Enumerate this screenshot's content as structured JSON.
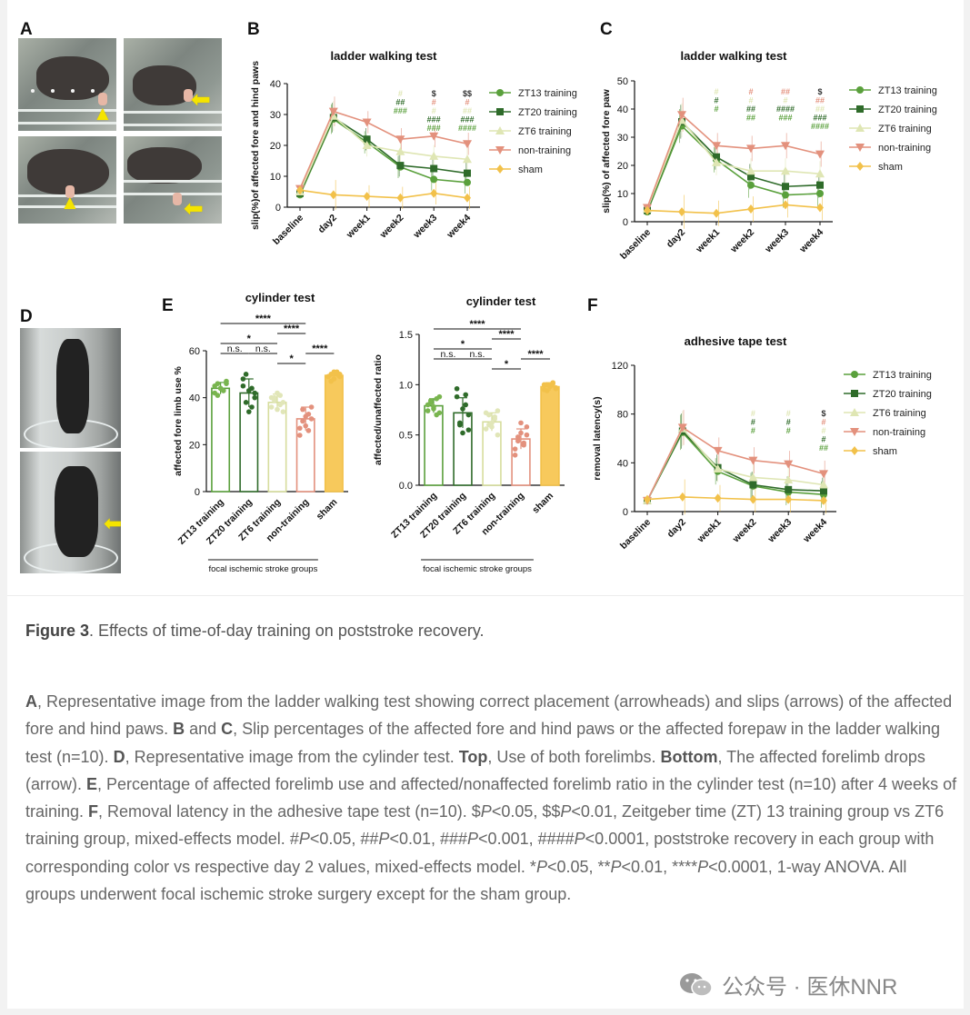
{
  "panels": {
    "A": "A",
    "B": "B",
    "C": "C",
    "D": "D",
    "E": "E",
    "F": "F"
  },
  "legend": [
    {
      "name": "ZT13 training",
      "color": "#5aa03c",
      "marker": "circle"
    },
    {
      "name": "ZT20 training",
      "color": "#2f6b2a",
      "marker": "square"
    },
    {
      "name": "ZT6 training",
      "color": "#dfe6b4",
      "marker": "triangle"
    },
    {
      "name": "non-training",
      "color": "#e3917d",
      "marker": "tri-down"
    },
    {
      "name": "sham",
      "color": "#f2c14a",
      "marker": "diamond"
    }
  ],
  "chart_data": [
    {
      "id": "B",
      "type": "line",
      "title": "ladder walking test",
      "ylabel": "slip(%)of affected fore and hind paws",
      "xlabel": "",
      "x": [
        "baseline",
        "day2",
        "week1",
        "week2",
        "week3",
        "week4"
      ],
      "ylim": [
        0,
        40
      ],
      "yticks": [
        0,
        10,
        20,
        30,
        40
      ],
      "series": [
        {
          "name": "ZT13 training",
          "values": [
            4,
            28.5,
            21,
            13,
            9,
            8
          ]
        },
        {
          "name": "ZT20 training",
          "values": [
            4.5,
            29,
            22,
            13.5,
            12.5,
            11
          ]
        },
        {
          "name": "ZT6 training",
          "values": [
            5,
            29.5,
            20,
            18,
            16.5,
            15.5
          ]
        },
        {
          "name": "non-training",
          "values": [
            6,
            31,
            27.5,
            22,
            23,
            20.5
          ]
        },
        {
          "name": "sham",
          "values": [
            5.5,
            4,
            3.5,
            3,
            4.5,
            3
          ]
        }
      ],
      "annotations": [
        {
          "x": "week2",
          "lines": [
            {
              "text": "#",
              "color": "#dfe6b4"
            },
            {
              "text": "##",
              "color": "#2f6b2a"
            },
            {
              "text": "###",
              "color": "#5aa03c"
            }
          ]
        },
        {
          "x": "week3",
          "lines": [
            {
              "text": "$",
              "color": "#333"
            },
            {
              "text": "#",
              "color": "#e3917d"
            },
            {
              "text": "#",
              "color": "#dfe6b4"
            },
            {
              "text": "###",
              "color": "#2f6b2a"
            },
            {
              "text": "###",
              "color": "#5aa03c"
            }
          ]
        },
        {
          "x": "week4",
          "lines": [
            {
              "text": "$$",
              "color": "#333"
            },
            {
              "text": "#",
              "color": "#e3917d"
            },
            {
              "text": "##",
              "color": "#dfe6b4"
            },
            {
              "text": "###",
              "color": "#2f6b2a"
            },
            {
              "text": "####",
              "color": "#5aa03c"
            }
          ]
        }
      ]
    },
    {
      "id": "C",
      "type": "line",
      "title": "ladder walking test",
      "ylabel": "slip(%) of affected fore paw",
      "xlabel": "",
      "x": [
        "baseline",
        "day2",
        "week1",
        "week2",
        "week3",
        "week4"
      ],
      "ylim": [
        0,
        50
      ],
      "yticks": [
        0,
        10,
        20,
        30,
        40,
        50
      ],
      "series": [
        {
          "name": "ZT13 training",
          "values": [
            3.5,
            34,
            22,
            13,
            9.5,
            10
          ]
        },
        {
          "name": "ZT20 training",
          "values": [
            4,
            35.5,
            23,
            16,
            12.5,
            13
          ]
        },
        {
          "name": "ZT6 training",
          "values": [
            4.5,
            36,
            21,
            18,
            18,
            17
          ]
        },
        {
          "name": "non-training",
          "values": [
            5,
            38,
            27,
            26,
            27,
            24
          ]
        },
        {
          "name": "sham",
          "values": [
            4,
            3.5,
            3,
            4.5,
            6,
            5
          ]
        }
      ],
      "annotations": [
        {
          "x": "week1",
          "lines": [
            {
              "text": "#",
              "color": "#dfe6b4"
            },
            {
              "text": "#",
              "color": "#2f6b2a"
            },
            {
              "text": "#",
              "color": "#5aa03c"
            }
          ]
        },
        {
          "x": "week2",
          "lines": [
            {
              "text": "#",
              "color": "#e3917d"
            },
            {
              "text": "#",
              "color": "#dfe6b4"
            },
            {
              "text": "##",
              "color": "#2f6b2a"
            },
            {
              "text": "##",
              "color": "#5aa03c"
            }
          ]
        },
        {
          "x": "week3",
          "lines": [
            {
              "text": "##",
              "color": "#e3917d"
            },
            {
              "text": "#",
              "color": "#dfe6b4"
            },
            {
              "text": "####",
              "color": "#2f6b2a"
            },
            {
              "text": "###",
              "color": "#5aa03c"
            }
          ]
        },
        {
          "x": "week4",
          "lines": [
            {
              "text": "$",
              "color": "#333"
            },
            {
              "text": "##",
              "color": "#e3917d"
            },
            {
              "text": "##",
              "color": "#dfe6b4"
            },
            {
              "text": "###",
              "color": "#2f6b2a"
            },
            {
              "text": "####",
              "color": "#5aa03c"
            }
          ]
        }
      ]
    },
    {
      "id": "E1",
      "type": "bar",
      "title": "cylinder test",
      "ylabel": "affected fore limb use %",
      "xlabel": "focal ischemic stroke groups",
      "categories": [
        "ZT13 training",
        "ZT20 training",
        "ZT6 training",
        "non-training",
        "sham"
      ],
      "values": [
        44,
        42,
        38,
        31,
        49.5
      ],
      "errors": [
        2.5,
        6,
        3.5,
        5,
        1.2
      ],
      "ylim": [
        0,
        60
      ],
      "yticks": [
        0,
        20,
        40,
        60
      ],
      "points": [
        [
          42,
          46,
          44,
          43,
          47,
          45,
          41,
          44,
          43,
          46
        ],
        [
          48,
          38,
          34,
          44,
          40,
          45,
          50,
          43,
          36,
          42
        ],
        [
          36,
          40,
          42,
          37,
          34,
          40,
          39,
          35,
          41,
          38
        ],
        [
          24,
          30,
          28,
          33,
          36,
          27,
          35,
          32,
          26,
          31
        ],
        [
          49,
          50,
          48,
          51,
          50,
          49,
          47,
          51,
          50,
          49
        ]
      ],
      "brackets": [
        {
          "from": 0,
          "to": 3,
          "label": "****"
        },
        {
          "from": 2,
          "to": 3,
          "label": "****"
        },
        {
          "from": 0,
          "to": 2,
          "label": "*"
        },
        {
          "from": 0,
          "to": 1,
          "label": "n.s."
        },
        {
          "from": 1,
          "to": 2,
          "label": "n.s."
        },
        {
          "from": 2,
          "to": 3,
          "label": "*"
        },
        {
          "from": 3,
          "to": 4,
          "label": "****"
        }
      ]
    },
    {
      "id": "E2",
      "type": "bar",
      "title": "cylinder test",
      "ylabel": "affected/unaffected ratio",
      "xlabel": "focal ischemic stroke groups",
      "categories": [
        "ZT13 training",
        "ZT20 training",
        "ZT6 training",
        "non-training",
        "sham"
      ],
      "values": [
        0.79,
        0.72,
        0.63,
        0.46,
        0.98
      ],
      "errors": [
        0.07,
        0.15,
        0.09,
        0.1,
        0.04
      ],
      "ylim": [
        0,
        1.5
      ],
      "yticks": [
        0.0,
        0.5,
        1.0,
        1.5
      ],
      "points": [
        [
          0.74,
          0.82,
          0.78,
          0.86,
          0.72,
          0.8,
          0.84,
          0.76,
          0.7,
          0.88
        ],
        [
          0.96,
          0.62,
          0.52,
          0.8,
          0.7,
          0.88,
          0.6,
          0.76,
          0.9,
          0.55
        ],
        [
          0.56,
          0.7,
          0.62,
          0.66,
          0.5,
          0.72,
          0.6,
          0.58,
          0.68,
          0.74
        ],
        [
          0.3,
          0.44,
          0.52,
          0.4,
          0.58,
          0.36,
          0.48,
          0.62,
          0.42,
          0.5
        ],
        [
          0.95,
          1.0,
          0.98,
          1.02,
          0.96,
          1.0,
          0.94,
          0.99,
          1.01,
          0.97
        ]
      ],
      "brackets": [
        {
          "from": 0,
          "to": 3,
          "label": "****"
        },
        {
          "from": 2,
          "to": 3,
          "label": "****"
        },
        {
          "from": 0,
          "to": 2,
          "label": "*"
        },
        {
          "from": 0,
          "to": 1,
          "label": "n.s."
        },
        {
          "from": 1,
          "to": 2,
          "label": "n.s."
        },
        {
          "from": 2,
          "to": 3,
          "label": "*"
        },
        {
          "from": 3,
          "to": 4,
          "label": "****"
        }
      ]
    },
    {
      "id": "F",
      "type": "line",
      "title": "adhesive tape test",
      "ylabel": "removal latency(s)",
      "xlabel": "",
      "x": [
        "baseline",
        "day2",
        "week1",
        "week2",
        "week3",
        "week4"
      ],
      "ylim": [
        0,
        120
      ],
      "yticks": [
        0,
        40,
        80,
        120
      ],
      "series": [
        {
          "name": "ZT13 training",
          "values": [
            9,
            65,
            33,
            21,
            16,
            14
          ]
        },
        {
          "name": "ZT20 training",
          "values": [
            9,
            66,
            36,
            22,
            18,
            17
          ]
        },
        {
          "name": "ZT6 training",
          "values": [
            9,
            68,
            35,
            28,
            26,
            22
          ]
        },
        {
          "name": "non-training",
          "values": [
            9,
            69,
            50,
            42,
            39,
            31
          ]
        },
        {
          "name": "sham",
          "values": [
            10,
            12,
            11,
            10,
            10,
            9
          ]
        }
      ],
      "annotations": [
        {
          "x": "week2",
          "lines": [
            {
              "text": "#",
              "color": "#dfe6b4"
            },
            {
              "text": "#",
              "color": "#2f6b2a"
            },
            {
              "text": "#",
              "color": "#5aa03c"
            }
          ]
        },
        {
          "x": "week3",
          "lines": [
            {
              "text": "#",
              "color": "#dfe6b4"
            },
            {
              "text": "#",
              "color": "#2f6b2a"
            },
            {
              "text": "#",
              "color": "#5aa03c"
            }
          ]
        },
        {
          "x": "week4",
          "lines": [
            {
              "text": "$",
              "color": "#333"
            },
            {
              "text": "#",
              "color": "#e3917d"
            },
            {
              "text": "#",
              "color": "#dfe6b4"
            },
            {
              "text": "#",
              "color": "#2f6b2a"
            },
            {
              "text": "##",
              "color": "#5aa03c"
            }
          ]
        }
      ]
    }
  ],
  "caption": {
    "title_bold": "Figure 3",
    "title_rest": ". Effects of time-of-day training on poststroke recovery.",
    "body_html": "<b>A</b>, Representative image from the ladder walking test showing correct placement (arrowheads) and slips (arrows) of the affected fore and hind paws. <b>B</b> and <b>C</b>, Slip percentages of the affected fore and hind paws or the affected forepaw in the ladder walking test (n=10). <b>D</b>, Representative image from the cylinder test. <b>Top</b>, Use of both forelimbs. <b>Bottom</b>, The affected forelimb drops (arrow). <b>E</b>, Percentage of affected forelimb use and affected/nonaffected forelimb ratio in the cylinder test (n=10) after 4 weeks of training. <b>F</b>, Removal latency in the adhesive tape test (n=10). $<i>P</i>&lt;0.05, $$<i>P</i>&lt;0.01, Zeitgeber time (ZT) 13 training group vs ZT6 training group, mixed-effects model. #<i>P</i>&lt;0.05, ##<i>P</i>&lt;0.01, ###<i>P</i>&lt;0.001, ####<i>P</i>&lt;0.0001, poststroke recovery in each group with corresponding color vs respective day 2 values, mixed-effects model. *<i>P</i>&lt;0.05, **<i>P</i>&lt;0.01, ****<i>P</i>&lt;0.0001, 1-way ANOVA. All groups underwent focal ischemic stroke surgery except for the sham group."
  },
  "watermark": {
    "text": "公众号 · 医休NNR",
    "icon": "wechat-icon"
  }
}
